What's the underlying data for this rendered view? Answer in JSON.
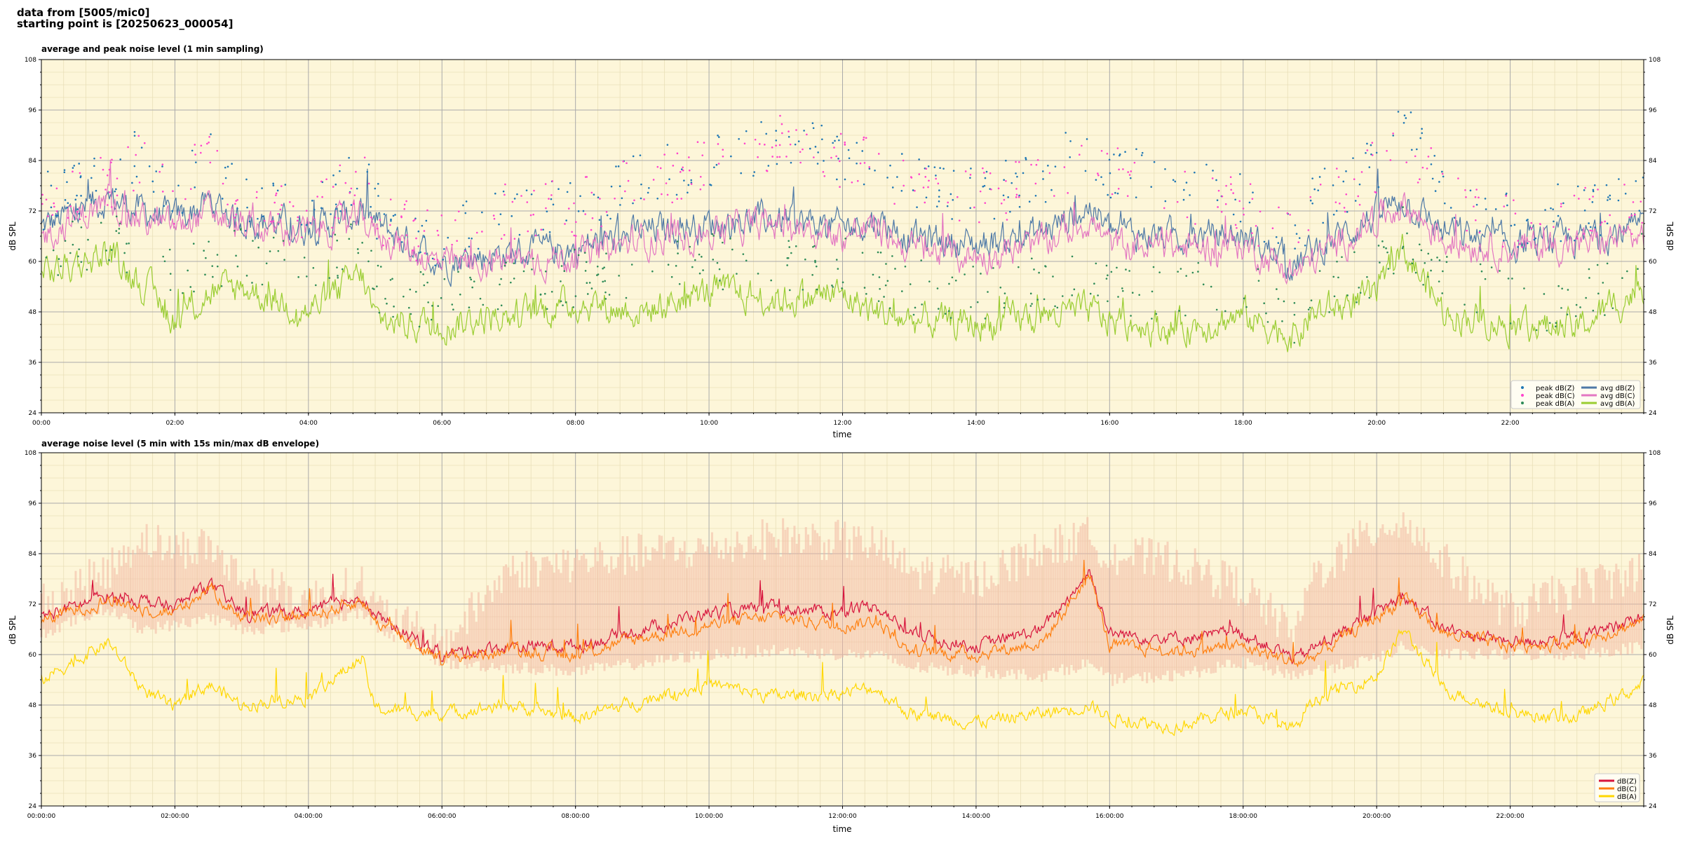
{
  "header": {
    "line1": "data from [5005/mic0]",
    "line2": "starting point is [20250623_000054]"
  },
  "colors": {
    "plot_bg": "#fdf6d9",
    "grid_major": "#aaaaaa",
    "grid_minor": "#e9dfb8",
    "envelope": "#f3b8a2"
  },
  "chart_data": [
    {
      "type": "line",
      "title": "average and peak noise level (1 min sampling)",
      "xlabel": "time",
      "ylabel": "dB SPL",
      "xlim": [
        "00:00",
        "24:00"
      ],
      "ylim": [
        24,
        108
      ],
      "grid": true,
      "legend_position": "lower-right",
      "yticks": [
        "24",
        "36",
        "48",
        "60",
        "72",
        "84",
        "96",
        "108"
      ],
      "xticks": [
        "00:00",
        "02:00",
        "04:00",
        "06:00",
        "08:00",
        "10:00",
        "12:00",
        "14:00",
        "16:00",
        "18:00",
        "20:00",
        "22:00"
      ],
      "x_hours": [
        0,
        1,
        1.5,
        2,
        2.5,
        3,
        4,
        4.8,
        5,
        6,
        7,
        8,
        9,
        10,
        11,
        12,
        12.5,
        13,
        14,
        15,
        15.7,
        16,
        17,
        18,
        18.8,
        19,
        20,
        20.4,
        21,
        22,
        23,
        24
      ],
      "series": [
        {
          "name": "avg dB(Z)",
          "color": "#4e79a7",
          "kind": "line",
          "values": [
            68,
            75,
            72,
            70,
            74,
            70,
            68,
            71,
            69,
            60,
            62,
            63,
            67,
            69,
            70,
            68,
            70,
            66,
            64,
            67,
            73,
            67,
            66,
            66,
            59,
            62,
            71,
            75,
            67,
            64,
            65,
            68
          ]
        },
        {
          "name": "avg dB(C)",
          "color": "#e377c2",
          "kind": "line",
          "values": [
            66,
            74,
            70,
            68,
            72,
            68,
            67,
            70,
            67,
            59,
            60,
            61,
            65,
            67,
            69,
            66,
            68,
            63,
            61,
            64,
            70,
            64,
            63,
            64,
            57,
            60,
            70,
            74,
            65,
            63,
            64,
            66
          ]
        },
        {
          "name": "avg dB(A)",
          "color": "#9acd32",
          "kind": "line",
          "values": [
            57,
            62,
            55,
            46,
            52,
            54,
            48,
            57,
            46,
            45,
            47,
            50,
            48,
            53,
            51,
            52,
            48,
            46,
            45,
            47,
            48,
            46,
            44,
            47,
            42,
            47,
            52,
            63,
            48,
            45,
            44,
            54
          ]
        },
        {
          "name": "peak dB(Z)",
          "color": "#1f77b4",
          "kind": "scatter",
          "values": [
            74,
            80,
            85,
            76,
            86,
            74,
            71,
            82,
            72,
            65,
            73,
            74,
            80,
            84,
            87,
            85,
            85,
            78,
            76,
            80,
            88,
            82,
            78,
            74,
            66,
            73,
            83,
            91,
            78,
            70,
            72,
            75
          ]
        },
        {
          "name": "peak dB(C)",
          "color": "#ff44cc",
          "kind": "scatter",
          "values": [
            72,
            79,
            84,
            75,
            85,
            73,
            70,
            81,
            71,
            64,
            72,
            73,
            79,
            83,
            88,
            84,
            84,
            77,
            75,
            79,
            87,
            81,
            77,
            73,
            65,
            72,
            82,
            90,
            77,
            69,
            71,
            74
          ]
        },
        {
          "name": "peak dB(A)",
          "color": "#2e8b57",
          "kind": "scatter",
          "values": [
            62,
            65,
            63,
            55,
            60,
            62,
            56,
            64,
            54,
            50,
            54,
            56,
            56,
            60,
            58,
            60,
            56,
            54,
            52,
            55,
            57,
            54,
            52,
            55,
            47,
            53,
            59,
            67,
            55,
            51,
            50,
            60
          ]
        }
      ]
    },
    {
      "type": "line",
      "title": "average noise level (5 min with 15s min/max dB envelope)",
      "xlabel": "time",
      "ylabel": "dB SPL",
      "xlim": [
        "00:00:00",
        "24:00:00"
      ],
      "ylim": [
        24,
        108
      ],
      "grid": true,
      "legend_position": "lower-right",
      "yticks": [
        "24",
        "36",
        "48",
        "60",
        "72",
        "84",
        "96",
        "108"
      ],
      "xticks": [
        "00:00:00",
        "02:00:00",
        "04:00:00",
        "06:00:00",
        "08:00:00",
        "10:00:00",
        "12:00:00",
        "14:00:00",
        "16:00:00",
        "18:00:00",
        "20:00:00",
        "22:00:00"
      ],
      "x_hours": [
        0,
        1,
        1.5,
        2,
        2.5,
        3,
        4,
        4.8,
        5,
        6,
        7,
        8,
        9,
        10,
        11,
        12,
        12.5,
        13,
        14,
        15,
        15.7,
        16,
        17,
        18,
        18.8,
        19,
        20,
        20.4,
        21,
        22,
        23,
        24
      ],
      "series": [
        {
          "name": "dB(Z)",
          "color": "#d7143c",
          "kind": "line",
          "values": [
            69,
            74,
            73,
            71,
            77,
            70,
            70,
            74,
            69,
            60,
            62,
            62,
            66,
            70,
            71,
            70,
            72,
            65,
            62,
            66,
            80,
            65,
            64,
            65,
            59,
            61,
            70,
            74,
            66,
            63,
            64,
            69
          ]
        },
        {
          "name": "dB(C)",
          "color": "#ff7f0e",
          "kind": "line",
          "values": [
            68,
            73,
            71,
            70,
            76,
            69,
            69,
            73,
            68,
            59,
            61,
            60,
            64,
            67,
            69,
            67,
            68,
            61,
            60,
            63,
            79,
            62,
            61,
            62,
            58,
            59,
            69,
            73,
            65,
            62,
            63,
            68
          ]
        },
        {
          "name": "dB(A)",
          "color": "#ffd700",
          "kind": "line",
          "values": [
            54,
            63,
            52,
            47,
            53,
            48,
            50,
            59,
            47,
            46,
            48,
            45,
            49,
            53,
            50,
            51,
            52,
            46,
            44,
            46,
            48,
            45,
            43,
            47,
            42,
            49,
            55,
            66,
            52,
            46,
            45,
            53
          ]
        }
      ],
      "envelope": {
        "name": "min/max envelope",
        "upper": [
          72,
          80,
          88,
          85,
          86,
          78,
          73,
          77,
          71,
          62,
          80,
          82,
          84,
          85,
          88,
          87,
          86,
          80,
          78,
          85,
          88,
          84,
          82,
          76,
          64,
          78,
          90,
          92,
          82,
          70,
          76,
          80
        ],
        "lower": [
          65,
          71,
          66,
          67,
          69,
          66,
          67,
          70,
          67,
          58,
          57,
          56,
          58,
          60,
          61,
          60,
          60,
          57,
          56,
          55,
          58,
          54,
          55,
          58,
          55,
          56,
          59,
          62,
          60,
          60,
          60,
          62
        ]
      }
    }
  ]
}
